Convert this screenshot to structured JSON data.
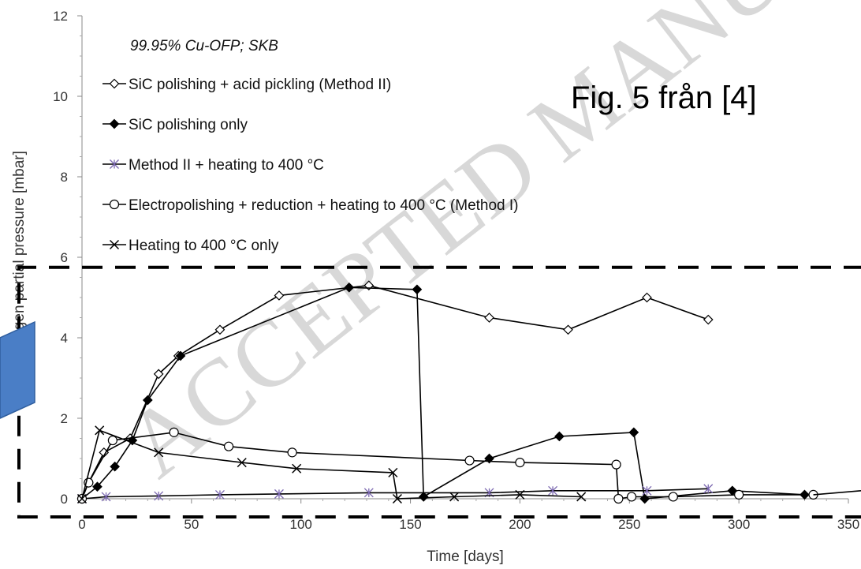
{
  "chart_data": {
    "type": "line",
    "subtitle": "99.95% Cu-OFP; SKB",
    "annotation": "Fig. 5 från [4]",
    "watermark": "ACCEPTED MANUSCRIPT",
    "xlabel": "Time [days]",
    "ylabel": "Hydrogen partial pressure [mbar]",
    "xlim": [
      0,
      350
    ],
    "ylim": [
      0,
      12
    ],
    "xticks": [
      0,
      50,
      100,
      150,
      200,
      250,
      300,
      350
    ],
    "yticks": [
      0,
      2,
      4,
      6,
      8,
      10,
      12
    ],
    "legend_position": "top-left",
    "series": [
      {
        "name": "SiC polishing + acid pickling (Method II)",
        "marker": "diamond-open",
        "color": "#000000",
        "points": [
          [
            0,
            0
          ],
          [
            3,
            0.4
          ],
          [
            10,
            1.15
          ],
          [
            22,
            1.5
          ],
          [
            35,
            3.1
          ],
          [
            44,
            3.55
          ],
          [
            63,
            4.2
          ],
          [
            90,
            5.05
          ],
          [
            131,
            5.3
          ],
          [
            186,
            4.5
          ],
          [
            222,
            4.2
          ],
          [
            258,
            5.0
          ],
          [
            286,
            4.45
          ]
        ]
      },
      {
        "name": "SiC polishing only",
        "marker": "diamond-filled",
        "color": "#000000",
        "points": [
          [
            0,
            0
          ],
          [
            7,
            0.3
          ],
          [
            15,
            0.8
          ],
          [
            23,
            1.45
          ],
          [
            30,
            2.45
          ],
          [
            45,
            3.55
          ],
          [
            122,
            5.25
          ],
          [
            153,
            5.2
          ],
          [
            156,
            0.05
          ],
          [
            186,
            1.0
          ],
          [
            218,
            1.55
          ],
          [
            252,
            1.65
          ],
          [
            257,
            0
          ],
          [
            297,
            0.2
          ],
          [
            330,
            0.1
          ]
        ]
      },
      {
        "name": "Method II + heating to 400 °C",
        "marker": "asterisk",
        "color": "#7b68b0",
        "points": [
          [
            0,
            0
          ],
          [
            11,
            0.05
          ],
          [
            35,
            0.07
          ],
          [
            63,
            0.1
          ],
          [
            90,
            0.12
          ],
          [
            131,
            0.15
          ],
          [
            186,
            0.15
          ],
          [
            215,
            0.2
          ],
          [
            258,
            0.2
          ],
          [
            286,
            0.25
          ]
        ]
      },
      {
        "name": "Electropolishing + reduction + heating to 400 °C (Method I)",
        "marker": "circle-open",
        "color": "#000000",
        "points": [
          [
            0,
            0
          ],
          [
            3,
            0.4
          ],
          [
            14,
            1.45
          ],
          [
            42,
            1.65
          ],
          [
            67,
            1.3
          ],
          [
            96,
            1.15
          ],
          [
            177,
            0.95
          ],
          [
            200,
            0.9
          ],
          [
            244,
            0.85
          ],
          [
            245,
            0
          ],
          [
            251,
            0.05
          ],
          [
            270,
            0.05
          ],
          [
            300,
            0.1
          ],
          [
            334,
            0.1
          ]
        ]
      },
      {
        "name": "Heating to 400 °C only",
        "marker": "x",
        "color": "#000000",
        "points": [
          [
            0,
            0
          ],
          [
            8,
            1.7
          ],
          [
            35,
            1.15
          ],
          [
            73,
            0.9
          ],
          [
            98,
            0.75
          ],
          [
            142,
            0.65
          ],
          [
            144,
            0
          ],
          [
            170,
            0.05
          ],
          [
            200,
            0.1
          ],
          [
            228,
            0.05
          ]
        ]
      }
    ]
  }
}
